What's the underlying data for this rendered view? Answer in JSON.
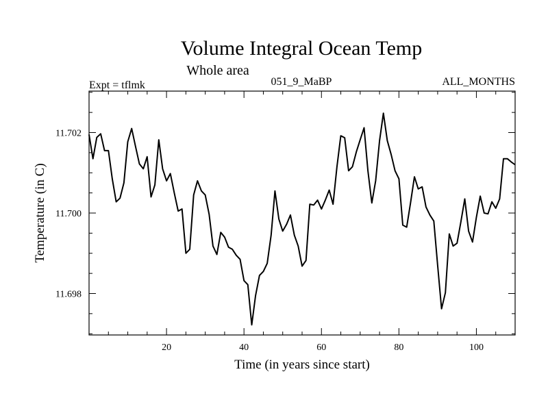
{
  "chart_data": {
    "type": "line",
    "title": "Volume Integral Ocean Temp",
    "subtitle": "Whole area",
    "experiment": "Expt = tflmk",
    "run_id": "051_9_MaBP",
    "period": "ALL_MONTHS",
    "xlabel": "Time (in years since start)",
    "ylabel": "Temperature (in C)",
    "xlim": [
      0,
      110
    ],
    "ylim": [
      11.69697,
      11.70303
    ],
    "x_ticks": [
      20,
      40,
      60,
      80,
      100
    ],
    "y_ticks": [
      11.698,
      11.7,
      11.702
    ],
    "x_tick_labels": [
      "20",
      "40",
      "60",
      "80",
      "100"
    ],
    "y_tick_labels": [
      "11.698",
      "11.700",
      "11.702"
    ],
    "grid": false,
    "series": [
      {
        "name": "Volume Integral Ocean Temp",
        "x": [
          0,
          1,
          2,
          3,
          4,
          5,
          6,
          7,
          8,
          9,
          10,
          11,
          12,
          13,
          14,
          15,
          16,
          17,
          18,
          19,
          20,
          21,
          22,
          23,
          24,
          25,
          26,
          27,
          28,
          29,
          30,
          31,
          32,
          33,
          34,
          35,
          36,
          37,
          38,
          39,
          40,
          41,
          42,
          43,
          44,
          45,
          46,
          47,
          48,
          49,
          50,
          51,
          52,
          53,
          54,
          55,
          56,
          57,
          58,
          59,
          60,
          61,
          62,
          63,
          64,
          65,
          66,
          67,
          68,
          69,
          70,
          71,
          72,
          73,
          74,
          75,
          76,
          77,
          78,
          79,
          80,
          81,
          82,
          83,
          84,
          85,
          86,
          87,
          88,
          89,
          90,
          91,
          92,
          93,
          94,
          95,
          96,
          97,
          98,
          99,
          100,
          101,
          102,
          103,
          104,
          105,
          106,
          107,
          108,
          109,
          110
        ],
        "values": [
          11.70195,
          11.70135,
          11.70188,
          11.70197,
          11.70155,
          11.70155,
          11.70085,
          11.70028,
          11.70037,
          11.70075,
          11.70177,
          11.7021,
          11.70165,
          11.70122,
          11.7011,
          11.7014,
          11.7004,
          11.7007,
          11.70182,
          11.7011,
          11.7008,
          11.70098,
          11.7005,
          11.70005,
          11.7001,
          11.699,
          11.6991,
          11.70045,
          11.7008,
          11.70055,
          11.70045,
          11.69997,
          11.69918,
          11.69897,
          11.69952,
          11.6994,
          11.69915,
          11.6991,
          11.69895,
          11.69885,
          11.69832,
          11.69822,
          11.69722,
          11.69795,
          11.69845,
          11.69855,
          11.69875,
          11.69945,
          11.70055,
          11.69985,
          11.69955,
          11.69972,
          11.69995,
          11.69945,
          11.69918,
          11.69868,
          11.69882,
          11.70022,
          11.7002,
          11.70032,
          11.7001,
          11.70032,
          11.70057,
          11.70022,
          11.70115,
          11.70192,
          11.70187,
          11.70105,
          11.70115,
          11.70152,
          11.70182,
          11.70212,
          11.70105,
          11.70025,
          11.7008,
          11.7018,
          11.70248,
          11.7018,
          11.70145,
          11.70105,
          11.70085,
          11.6997,
          11.69965,
          11.70025,
          11.7009,
          11.7006,
          11.70065,
          11.70015,
          11.69995,
          11.6998,
          11.6987,
          11.69762,
          11.69802,
          11.69948,
          11.69918,
          11.69925,
          11.69978,
          11.70035,
          11.69955,
          11.69928,
          11.6999,
          11.70042,
          11.7,
          11.69998,
          11.70028,
          11.70012,
          11.70035,
          11.70135,
          11.70135,
          11.70127,
          11.7012
        ]
      }
    ]
  }
}
